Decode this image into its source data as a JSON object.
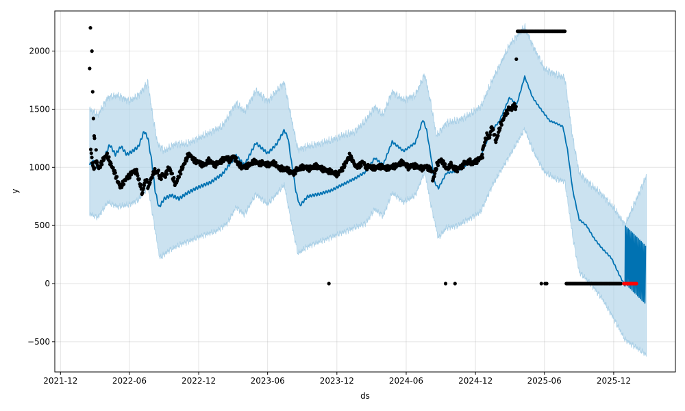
{
  "chart_data": {
    "type": "line",
    "title": "",
    "xlabel": "ds",
    "ylabel": "y",
    "xlim": [
      "2021-11-16",
      "2026-05-13"
    ],
    "ylim": [
      -760,
      2345
    ],
    "grid": true,
    "x_ticks": [
      "2021-12",
      "2022-06",
      "2022-12",
      "2023-06",
      "2023-12",
      "2024-06",
      "2024-12",
      "2025-06",
      "2025-12"
    ],
    "y_ticks": [
      -500,
      0,
      500,
      1000,
      1500,
      2000
    ],
    "colors": {
      "forecast": "#0072B2",
      "band": "#a9cfe6",
      "observed": "#000000",
      "highlight": "#ff0000"
    },
    "series": [
      {
        "role": "forecast",
        "points": [
          [
            "2022-02-16",
            1020
          ],
          [
            "2022-03-01",
            1060
          ],
          [
            "2022-03-10",
            985
          ],
          [
            "2022-03-25",
            1070
          ],
          [
            "2022-04-10",
            1195
          ],
          [
            "2022-04-25",
            1110
          ],
          [
            "2022-05-10",
            1180
          ],
          [
            "2022-05-25",
            1110
          ],
          [
            "2022-06-10",
            1140
          ],
          [
            "2022-06-25",
            1180
          ],
          [
            "2022-07-10",
            1310
          ],
          [
            "2022-07-20",
            1250
          ],
          [
            "2022-07-30",
            1050
          ],
          [
            "2022-08-08",
            800
          ],
          [
            "2022-08-18",
            655
          ],
          [
            "2022-09-01",
            730
          ],
          [
            "2022-09-20",
            760
          ],
          [
            "2022-10-10",
            730
          ],
          [
            "2022-11-01",
            780
          ],
          [
            "2022-12-01",
            830
          ],
          [
            "2023-01-01",
            870
          ],
          [
            "2023-02-01",
            940
          ],
          [
            "2023-03-10",
            1100
          ],
          [
            "2023-04-01",
            1020
          ],
          [
            "2023-05-01",
            1210
          ],
          [
            "2023-06-01",
            1120
          ],
          [
            "2023-06-25",
            1200
          ],
          [
            "2023-07-15",
            1320
          ],
          [
            "2023-07-25",
            1250
          ],
          [
            "2023-08-05",
            1000
          ],
          [
            "2023-08-15",
            790
          ],
          [
            "2023-08-25",
            670
          ],
          [
            "2023-09-15",
            750
          ],
          [
            "2023-10-15",
            770
          ],
          [
            "2023-11-15",
            800
          ],
          [
            "2023-12-15",
            850
          ],
          [
            "2024-01-15",
            900
          ],
          [
            "2024-02-15",
            960
          ],
          [
            "2024-03-10",
            1080
          ],
          [
            "2024-04-01",
            1020
          ],
          [
            "2024-04-25",
            1220
          ],
          [
            "2024-05-25",
            1140
          ],
          [
            "2024-06-25",
            1210
          ],
          [
            "2024-07-15",
            1410
          ],
          [
            "2024-07-25",
            1320
          ],
          [
            "2024-08-05",
            1100
          ],
          [
            "2024-08-15",
            870
          ],
          [
            "2024-08-25",
            820
          ],
          [
            "2024-09-15",
            950
          ],
          [
            "2024-10-15",
            970
          ],
          [
            "2024-11-15",
            1040
          ],
          [
            "2024-12-15",
            1090
          ],
          [
            "2025-01-10",
            1310
          ],
          [
            "2025-02-01",
            1390
          ],
          [
            "2025-03-01",
            1600
          ],
          [
            "2025-03-20",
            1540
          ],
          [
            "2025-04-10",
            1780
          ],
          [
            "2025-05-01",
            1600
          ],
          [
            "2025-05-25",
            1490
          ],
          [
            "2025-06-15",
            1400
          ],
          [
            "2025-07-01",
            1380
          ],
          [
            "2025-07-20",
            1350
          ],
          [
            "2025-08-01",
            1150
          ],
          [
            "2025-08-15",
            800
          ],
          [
            "2025-09-01",
            550
          ],
          [
            "2025-09-20",
            500
          ],
          [
            "2025-10-10",
            390
          ],
          [
            "2025-11-01",
            300
          ],
          [
            "2025-11-25",
            220
          ],
          [
            "2025-12-15",
            80
          ],
          [
            "2025-12-31",
            -20
          ]
        ]
      },
      {
        "role": "forecast-tail",
        "oscillation": {
          "start": "2026-01-01",
          "end": "2026-02-25",
          "period_days": 3.8,
          "high_start": 495,
          "high_end": 320,
          "low_start": 0,
          "low_end": -180
        }
      },
      {
        "role": "band",
        "upper": [
          [
            "2022-02-16",
            1500
          ],
          [
            "2022-03-10",
            1450
          ],
          [
            "2022-04-05",
            1600
          ],
          [
            "2022-05-01",
            1620
          ],
          [
            "2022-06-01",
            1570
          ],
          [
            "2022-06-25",
            1620
          ],
          [
            "2022-07-20",
            1730
          ],
          [
            "2022-08-01",
            1450
          ],
          [
            "2022-08-15",
            1200
          ],
          [
            "2022-09-01",
            1140
          ],
          [
            "2022-10-01",
            1200
          ],
          [
            "2022-11-01",
            1200
          ],
          [
            "2022-12-01",
            1250
          ],
          [
            "2023-01-01",
            1300
          ],
          [
            "2023-02-01",
            1350
          ],
          [
            "2023-03-10",
            1550
          ],
          [
            "2023-04-01",
            1480
          ],
          [
            "2023-05-01",
            1660
          ],
          [
            "2023-06-01",
            1570
          ],
          [
            "2023-07-15",
            1730
          ],
          [
            "2023-08-01",
            1450
          ],
          [
            "2023-08-20",
            1150
          ],
          [
            "2023-09-15",
            1180
          ],
          [
            "2023-10-15",
            1200
          ],
          [
            "2023-11-15",
            1230
          ],
          [
            "2023-12-15",
            1270
          ],
          [
            "2024-01-15",
            1300
          ],
          [
            "2024-02-15",
            1400
          ],
          [
            "2024-03-10",
            1520
          ],
          [
            "2024-04-01",
            1450
          ],
          [
            "2024-04-25",
            1650
          ],
          [
            "2024-05-25",
            1580
          ],
          [
            "2024-06-25",
            1620
          ],
          [
            "2024-07-20",
            1800
          ],
          [
            "2024-08-05",
            1550
          ],
          [
            "2024-08-20",
            1270
          ],
          [
            "2024-09-15",
            1380
          ],
          [
            "2024-10-15",
            1400
          ],
          [
            "2024-11-15",
            1450
          ],
          [
            "2024-12-15",
            1520
          ],
          [
            "2025-01-15",
            1750
          ],
          [
            "2025-03-01",
            2050
          ],
          [
            "2025-04-10",
            2210
          ],
          [
            "2025-05-01",
            2050
          ],
          [
            "2025-06-01",
            1850
          ],
          [
            "2025-07-01",
            1800
          ],
          [
            "2025-07-25",
            1770
          ],
          [
            "2025-08-15",
            1250
          ],
          [
            "2025-09-01",
            950
          ],
          [
            "2025-10-01",
            850
          ],
          [
            "2025-11-01",
            760
          ],
          [
            "2025-12-01",
            650
          ],
          [
            "2025-12-31",
            500
          ],
          [
            "2026-02-25",
            920
          ]
        ],
        "lower": [
          [
            "2022-02-16",
            600
          ],
          [
            "2022-03-10",
            570
          ],
          [
            "2022-04-05",
            700
          ],
          [
            "2022-05-01",
            660
          ],
          [
            "2022-06-01",
            680
          ],
          [
            "2022-06-25",
            720
          ],
          [
            "2022-07-20",
            830
          ],
          [
            "2022-08-01",
            600
          ],
          [
            "2022-08-20",
            220
          ],
          [
            "2022-09-15",
            290
          ],
          [
            "2022-10-15",
            340
          ],
          [
            "2022-11-15",
            380
          ],
          [
            "2022-12-15",
            420
          ],
          [
            "2023-01-15",
            450
          ],
          [
            "2023-02-15",
            520
          ],
          [
            "2023-03-10",
            660
          ],
          [
            "2023-04-01",
            590
          ],
          [
            "2023-05-01",
            770
          ],
          [
            "2023-06-01",
            680
          ],
          [
            "2023-07-15",
            850
          ],
          [
            "2023-08-01",
            550
          ],
          [
            "2023-08-20",
            260
          ],
          [
            "2023-09-15",
            320
          ],
          [
            "2023-10-15",
            360
          ],
          [
            "2023-11-15",
            400
          ],
          [
            "2023-12-15",
            440
          ],
          [
            "2024-01-15",
            480
          ],
          [
            "2024-02-15",
            520
          ],
          [
            "2024-03-10",
            640
          ],
          [
            "2024-04-01",
            580
          ],
          [
            "2024-04-25",
            780
          ],
          [
            "2024-05-25",
            700
          ],
          [
            "2024-06-25",
            760
          ],
          [
            "2024-07-20",
            960
          ],
          [
            "2024-08-05",
            680
          ],
          [
            "2024-08-25",
            390
          ],
          [
            "2024-09-15",
            480
          ],
          [
            "2024-10-15",
            500
          ],
          [
            "2024-11-15",
            560
          ],
          [
            "2024-12-15",
            620
          ],
          [
            "2025-01-15",
            850
          ],
          [
            "2025-03-01",
            1100
          ],
          [
            "2025-04-10",
            1330
          ],
          [
            "2025-05-01",
            1150
          ],
          [
            "2025-06-01",
            960
          ],
          [
            "2025-07-01",
            900
          ],
          [
            "2025-07-25",
            880
          ],
          [
            "2025-08-15",
            400
          ],
          [
            "2025-09-01",
            100
          ],
          [
            "2025-10-01",
            0
          ],
          [
            "2025-11-01",
            -130
          ],
          [
            "2025-12-01",
            -300
          ],
          [
            "2025-12-31",
            -480
          ],
          [
            "2026-02-25",
            -610
          ]
        ]
      },
      {
        "role": "observed",
        "segments": [
          {
            "start": "2022-02-19",
            "end": "2022-06-20",
            "values": [
              1150,
              980,
              1060,
              990,
              1040,
              1080,
              1110,
              1050,
              1000,
              950,
              880,
              830,
              860,
              900,
              920,
              950,
              970,
              960
            ]
          },
          {
            "start": "2022-06-20",
            "end": "2022-08-10",
            "values": [
              960,
              900,
              850,
              770,
              860,
              900,
              830,
              880,
              920,
              960,
              970
            ]
          },
          {
            "start": "2022-08-10",
            "end": "2022-11-10",
            "values": [
              950,
              970,
              900,
              940,
              920,
              960,
              1000,
              960,
              900,
              850,
              900,
              950,
              990,
              1030,
              1070,
              1110,
              1100
            ]
          },
          {
            "start": "2022-11-10",
            "end": "2023-03-10",
            "values": [
              1100,
              1060,
              1050,
              1040,
              1020,
              1030,
              1060,
              1040,
              1020,
              1040,
              1050,
              1070,
              1080,
              1060,
              1100,
              1060
            ]
          },
          {
            "start": "2023-03-10",
            "end": "2023-07-15",
            "values": [
              1050,
              1020,
              1000,
              1010,
              1020,
              1040,
              1050,
              1030,
              1040,
              1030,
              1020,
              1030,
              1040,
              1000,
              990,
              980
            ]
          },
          {
            "start": "2023-07-15",
            "end": "2024-01-20",
            "values": [
              990,
              980,
              960,
              950,
              980,
              990,
              1000,
              1000,
              990,
              1000,
              1010,
              1000,
              990,
              980,
              970,
              960,
              950,
              940,
              970,
              1000,
              1050,
              1100,
              1060,
              1000
            ]
          },
          {
            "start": "2024-01-20",
            "end": "2024-08-10",
            "values": [
              1000,
              1010,
              1050,
              1000,
              1010,
              990,
              1000,
              1010,
              1000,
              990,
              1000,
              1010,
              1020,
              1040,
              1030,
              1000,
              1020,
              1010,
              1000,
              990,
              1010,
              990,
              960
            ]
          },
          {
            "start": "2024-08-10",
            "end": "2024-09-30",
            "values": [
              880,
              950,
              1020,
              1050,
              1060,
              1040,
              1000,
              990,
              1010,
              1030
            ]
          },
          {
            "start": "2024-09-30",
            "end": "2024-12-20",
            "values": [
              1000,
              990,
              980,
              1000,
              1010,
              1040,
              1040,
              1050,
              1030,
              1050,
              1060,
              1080,
              1100
            ]
          },
          {
            "start": "2024-12-20",
            "end": "2025-03-18",
            "values": [
              1150,
              1220,
              1280,
              1250,
              1350,
              1300,
              1220,
              1290,
              1360,
              1400,
              1450,
              1480,
              1510,
              1500,
              1530,
              1510
            ]
          }
        ],
        "constant_runs": [
          {
            "start": "2025-03-22",
            "end": "2025-07-25",
            "value": 2170,
            "count": 60
          },
          {
            "start": "2025-07-29",
            "end": "2025-12-20",
            "value": 0,
            "count": 70
          }
        ],
        "singles": [
          [
            "2022-02-16",
            1850
          ],
          [
            "2022-02-18",
            2200
          ],
          [
            "2022-02-22",
            2000
          ],
          [
            "2022-02-24",
            1650
          ],
          [
            "2022-02-26",
            1420
          ],
          [
            "2022-02-28",
            1270
          ],
          [
            "2022-03-01",
            1250
          ],
          [
            "2022-03-05",
            1150
          ],
          [
            "2023-11-10",
            0
          ],
          [
            "2024-09-13",
            0
          ],
          [
            "2024-10-08",
            0
          ],
          [
            "2025-03-19",
            1930
          ],
          [
            "2025-05-24",
            0
          ],
          [
            "2025-06-03",
            0
          ],
          [
            "2025-06-07",
            0
          ]
        ]
      },
      {
        "role": "highlight",
        "start": "2025-12-28",
        "end": "2026-01-30",
        "value": 0,
        "count": 18
      }
    ]
  }
}
